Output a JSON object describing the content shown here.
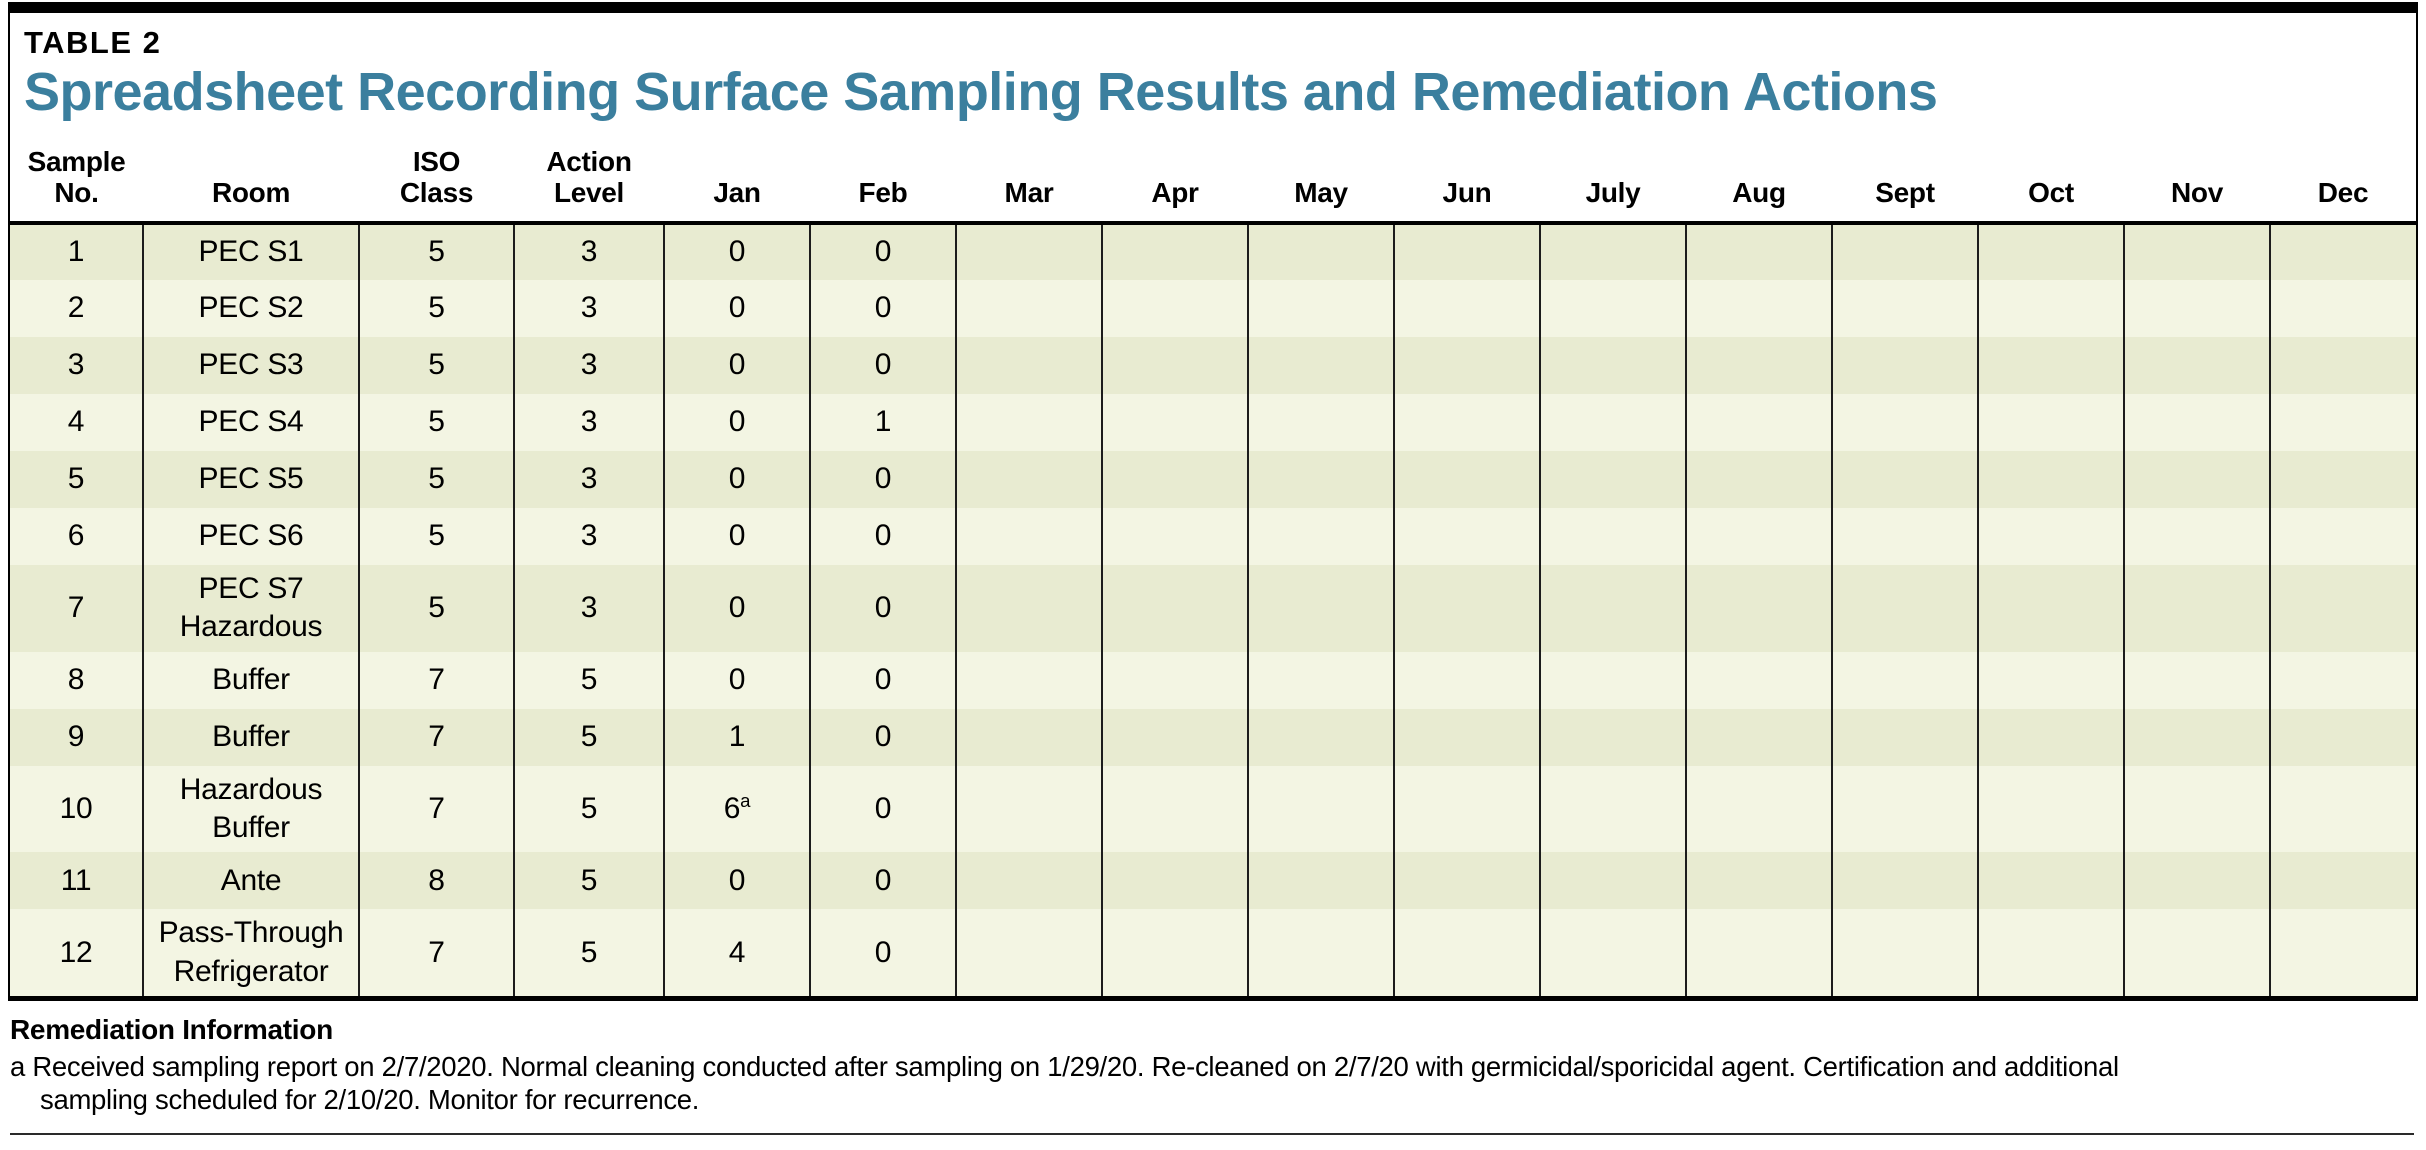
{
  "page": {
    "label": "TABLE 2",
    "title": "Spreadsheet Recording Surface Sampling Results and Remediation Actions",
    "accent_color": "#3B7F9E"
  },
  "table": {
    "headers": [
      "Sample\nNo.",
      "Room",
      "ISO\nClass",
      "Action\nLevel",
      "Jan",
      "Feb",
      "Mar",
      "Apr",
      "May",
      "Jun",
      "July",
      "Aug",
      "Sept",
      "Oct",
      "Nov",
      "Dec"
    ],
    "month_keys": [
      "jan",
      "feb",
      "mar",
      "apr",
      "may",
      "jun",
      "july",
      "aug",
      "sept",
      "oct",
      "nov",
      "dec"
    ],
    "row_color_odd": "#E8EBD1",
    "row_color_even": "#F3F5E3",
    "rows": [
      {
        "no": "1",
        "room": "PEC S1",
        "iso": "5",
        "action": "3",
        "months": [
          "0",
          "0",
          "",
          "",
          "",
          "",
          "",
          "",
          "",
          "",
          "",
          ""
        ]
      },
      {
        "no": "2",
        "room": "PEC S2",
        "iso": "5",
        "action": "3",
        "months": [
          "0",
          "0",
          "",
          "",
          "",
          "",
          "",
          "",
          "",
          "",
          "",
          ""
        ]
      },
      {
        "no": "3",
        "room": "PEC S3",
        "iso": "5",
        "action": "3",
        "months": [
          "0",
          "0",
          "",
          "",
          "",
          "",
          "",
          "",
          "",
          "",
          "",
          ""
        ]
      },
      {
        "no": "4",
        "room": "PEC S4",
        "iso": "5",
        "action": "3",
        "months": [
          "0",
          "1",
          "",
          "",
          "",
          "",
          "",
          "",
          "",
          "",
          "",
          ""
        ]
      },
      {
        "no": "5",
        "room": "PEC S5",
        "iso": "5",
        "action": "3",
        "months": [
          "0",
          "0",
          "",
          "",
          "",
          "",
          "",
          "",
          "",
          "",
          "",
          ""
        ]
      },
      {
        "no": "6",
        "room": "PEC S6",
        "iso": "5",
        "action": "3",
        "months": [
          "0",
          "0",
          "",
          "",
          "",
          "",
          "",
          "",
          "",
          "",
          "",
          ""
        ]
      },
      {
        "no": "7",
        "room": "PEC S7\nHazardous",
        "iso": "5",
        "action": "3",
        "months": [
          "0",
          "0",
          "",
          "",
          "",
          "",
          "",
          "",
          "",
          "",
          "",
          ""
        ]
      },
      {
        "no": "8",
        "room": "Buffer",
        "iso": "7",
        "action": "5",
        "months": [
          "0",
          "0",
          "",
          "",
          "",
          "",
          "",
          "",
          "",
          "",
          "",
          ""
        ]
      },
      {
        "no": "9",
        "room": "Buffer",
        "iso": "7",
        "action": "5",
        "months": [
          "1",
          "0",
          "",
          "",
          "",
          "",
          "",
          "",
          "",
          "",
          "",
          ""
        ]
      },
      {
        "no": "10",
        "room": "Hazardous\nBuffer",
        "iso": "7",
        "action": "5",
        "months": [
          "6",
          "0",
          "",
          "",
          "",
          "",
          "",
          "",
          "",
          "",
          "",
          ""
        ],
        "superscripts": {
          "0": "a"
        }
      },
      {
        "no": "11",
        "room": "Ante",
        "iso": "8",
        "action": "5",
        "months": [
          "0",
          "0",
          "",
          "",
          "",
          "",
          "",
          "",
          "",
          "",
          "",
          ""
        ]
      },
      {
        "no": "12",
        "room": "Pass-Through\nRefrigerator",
        "iso": "7",
        "action": "5",
        "months": [
          "4",
          "0",
          "",
          "",
          "",
          "",
          "",
          "",
          "",
          "",
          "",
          ""
        ]
      }
    ]
  },
  "footer": {
    "heading": "Remediation Information",
    "note_marker": "a",
    "note_line1": "Received sampling report on 2/7/2020. Normal cleaning conducted after sampling on 1/29/20. Re-cleaned on 2/7/20 with germicidal/sporicidal agent. Certification and additional",
    "note_line2": "sampling scheduled for 2/10/20. Monitor for recurrence."
  }
}
